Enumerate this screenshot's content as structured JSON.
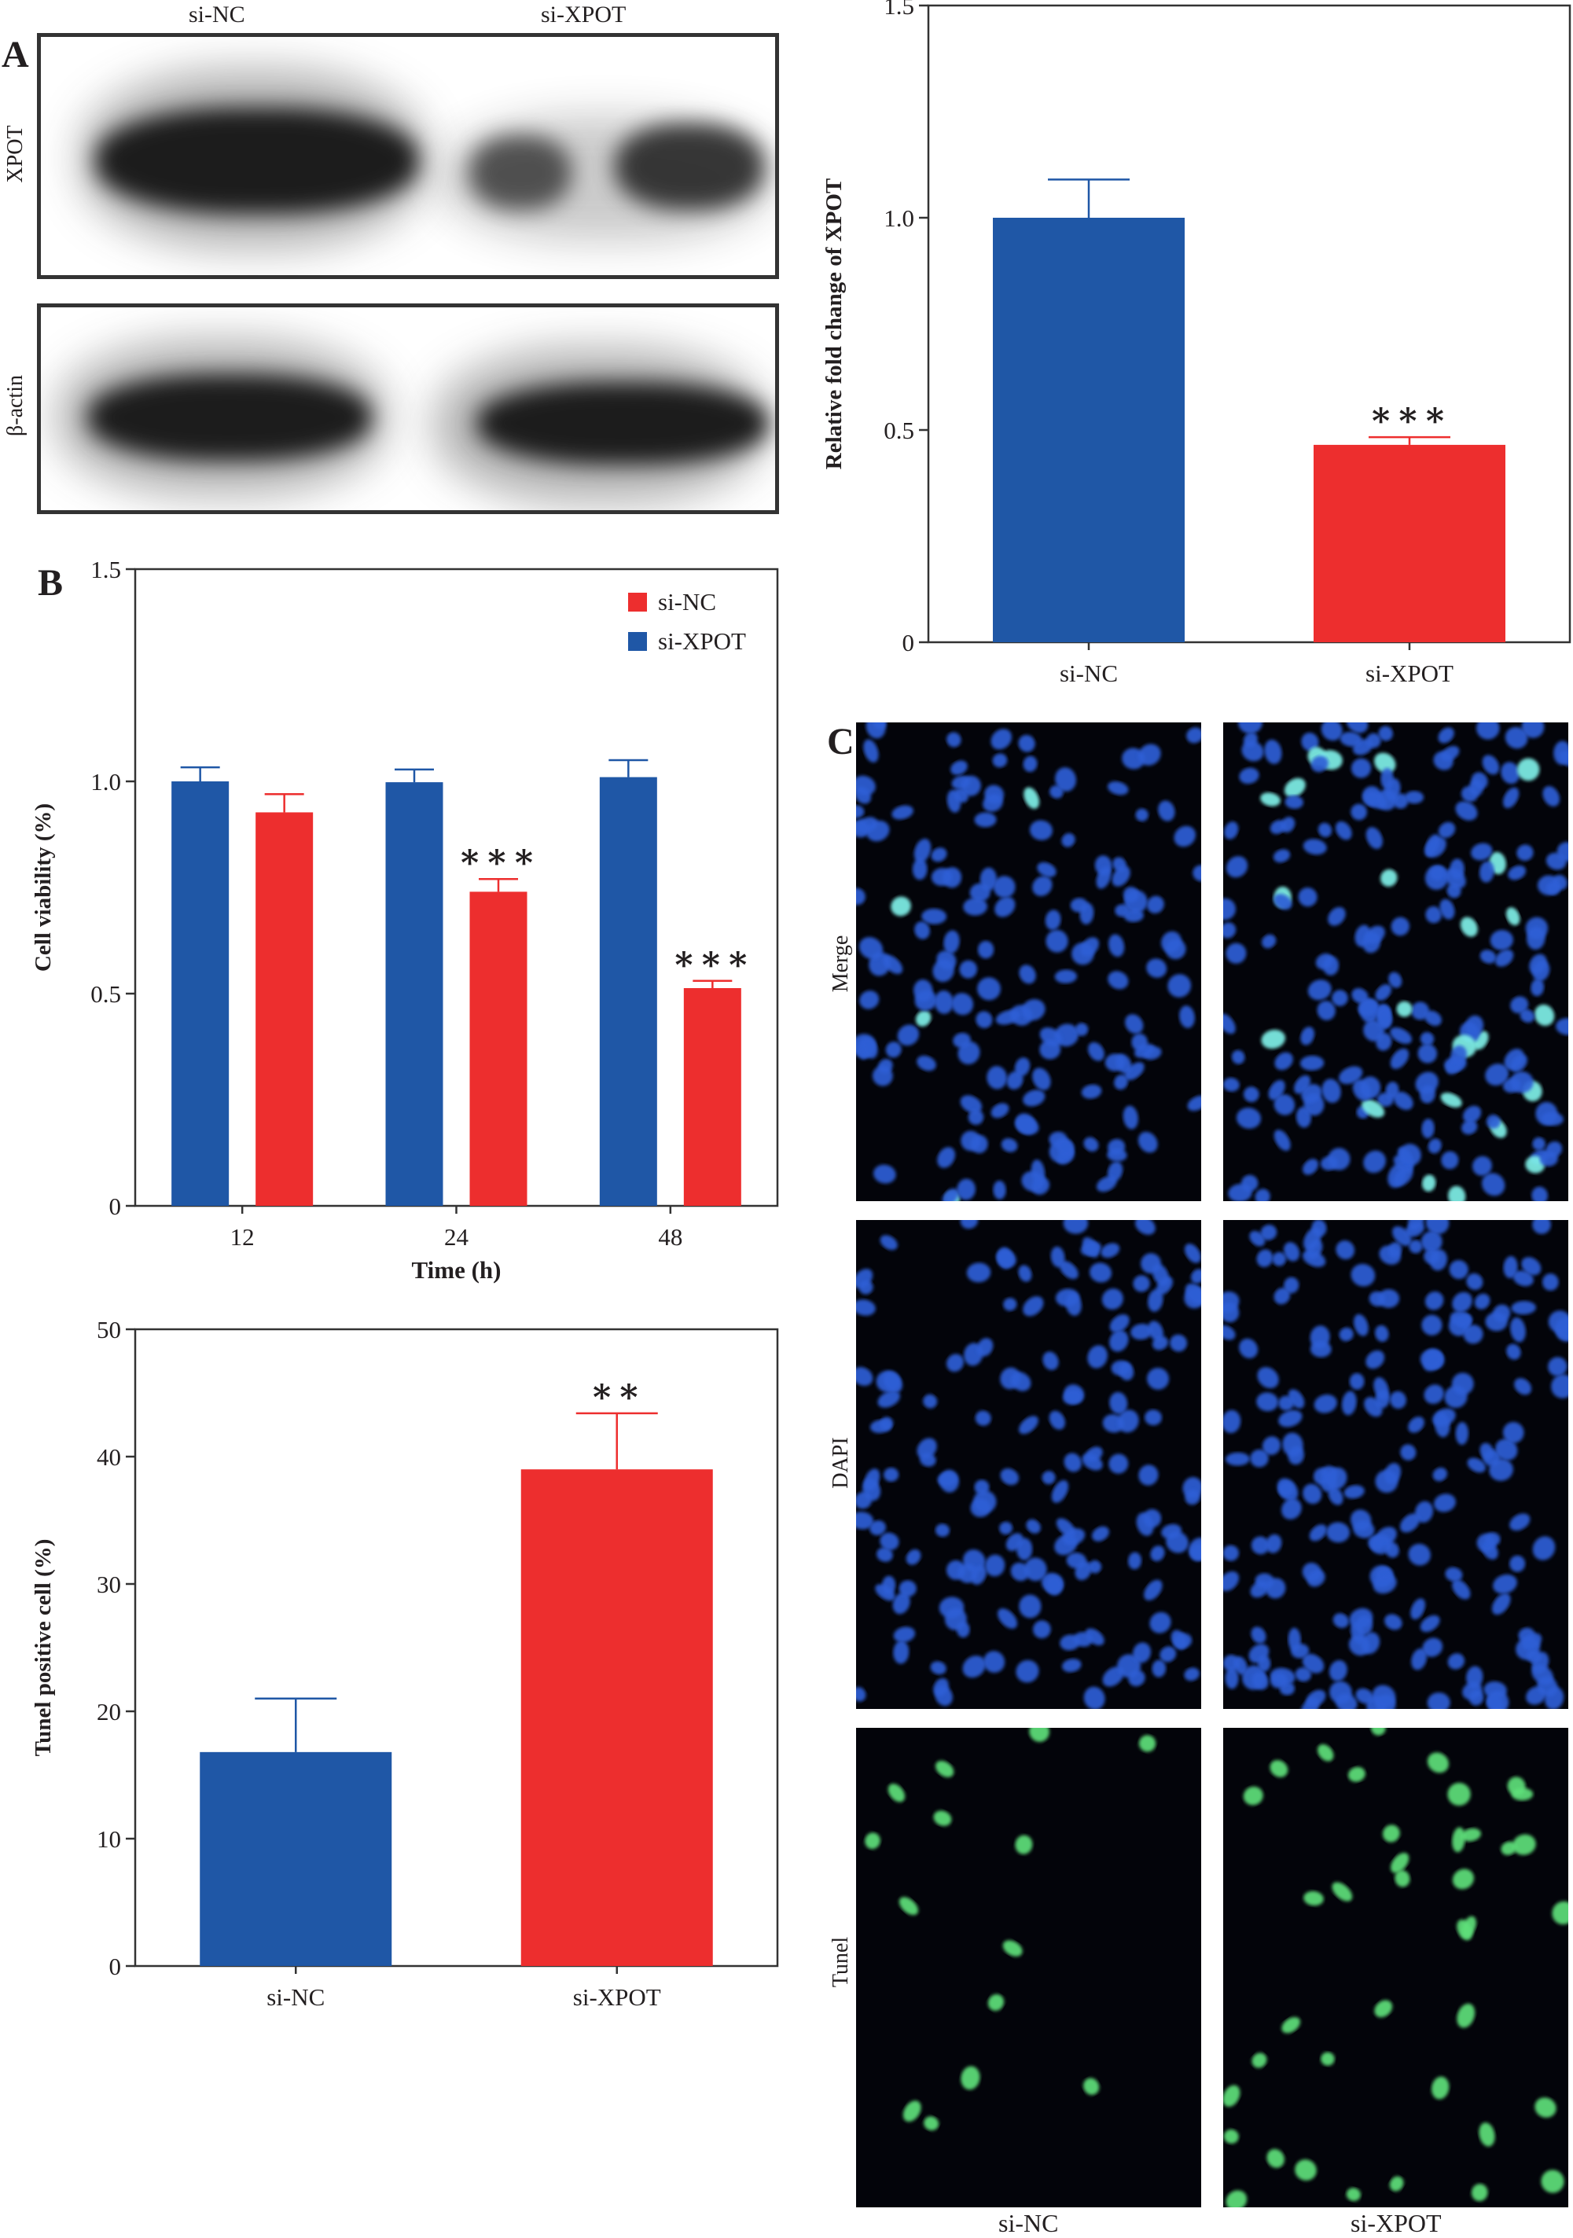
{
  "panels": {
    "a_letter": "A",
    "b_letter": "B",
    "c_letter": "C"
  },
  "western_blot": {
    "lanes": [
      "si-NC",
      "si-XPOT"
    ],
    "rows": [
      {
        "label": "XPOT",
        "intensity": [
          1.0,
          0.55
        ]
      },
      {
        "label": "β-actin",
        "intensity": [
          1.0,
          1.0
        ]
      }
    ]
  },
  "colors": {
    "blue": "#1f57a6",
    "red": "#ed2e2e",
    "axis": "#333333",
    "nucleus_blue": "#2d5fd6",
    "nucleus_cyan": "#7ff0e8",
    "nucleus_green": "#5ee07a"
  },
  "chart_data": [
    {
      "id": "xpot_fold_change",
      "type": "bar",
      "title": "",
      "xlabel": "",
      "ylabel": "Relative fold change of XPOT",
      "ylim": [
        0,
        1.5
      ],
      "yticks": [
        "0",
        "0.5",
        "1.0",
        "1.5"
      ],
      "ytick_values": [
        0,
        0.5,
        1.0,
        1.5
      ],
      "categories": [
        "si-NC",
        "si-XPOT"
      ],
      "values": [
        1.0,
        0.465
      ],
      "errors": [
        0.09,
        0.018
      ],
      "bar_colors": [
        "blue",
        "red"
      ],
      "annotations": [
        "",
        "***"
      ],
      "grid": false,
      "legend": null
    },
    {
      "id": "cell_viability",
      "type": "bar",
      "title": "",
      "xlabel": "Time (h)",
      "ylabel": "Cell viability (%)",
      "ylim": [
        0,
        1.5
      ],
      "yticks": [
        "0",
        "0.5",
        "1.0",
        "1.5"
      ],
      "ytick_values": [
        0,
        0.5,
        1.0,
        1.5
      ],
      "categories": [
        "12",
        "24",
        "48"
      ],
      "series": [
        {
          "name": "si-XPOT",
          "color": "blue",
          "values": [
            1.0,
            0.998,
            1.01
          ],
          "errors": [
            0.033,
            0.03,
            0.04
          ],
          "annotations": [
            "",
            "",
            ""
          ]
        },
        {
          "name": "si-NC",
          "color": "red",
          "values": [
            0.927,
            0.74,
            0.513
          ],
          "errors": [
            0.043,
            0.03,
            0.017
          ],
          "annotations": [
            "",
            "***",
            "***"
          ]
        }
      ],
      "legend": {
        "placement": "top-right",
        "entries": [
          {
            "label": "si-NC",
            "color": "red"
          },
          {
            "label": "si-XPOT",
            "color": "blue"
          }
        ]
      },
      "grid": false
    },
    {
      "id": "tunel_positive",
      "type": "bar",
      "title": "",
      "xlabel": "",
      "ylabel": "Tunel positive cell (%)",
      "ylim": [
        0,
        50
      ],
      "yticks": [
        "0",
        "10",
        "20",
        "30",
        "40",
        "50"
      ],
      "ytick_values": [
        0,
        10,
        20,
        30,
        40,
        50
      ],
      "categories": [
        "si-NC",
        "si-XPOT"
      ],
      "values": [
        16.8,
        39.0
      ],
      "errors": [
        4.2,
        4.4
      ],
      "bar_colors": [
        "blue",
        "red"
      ],
      "annotations": [
        "",
        "**"
      ],
      "grid": false,
      "legend": null
    }
  ],
  "micrographs": {
    "rows": [
      "Merge",
      "DAPI",
      "Tunel"
    ],
    "columns": [
      "si-NC",
      "si-XPOT"
    ]
  }
}
